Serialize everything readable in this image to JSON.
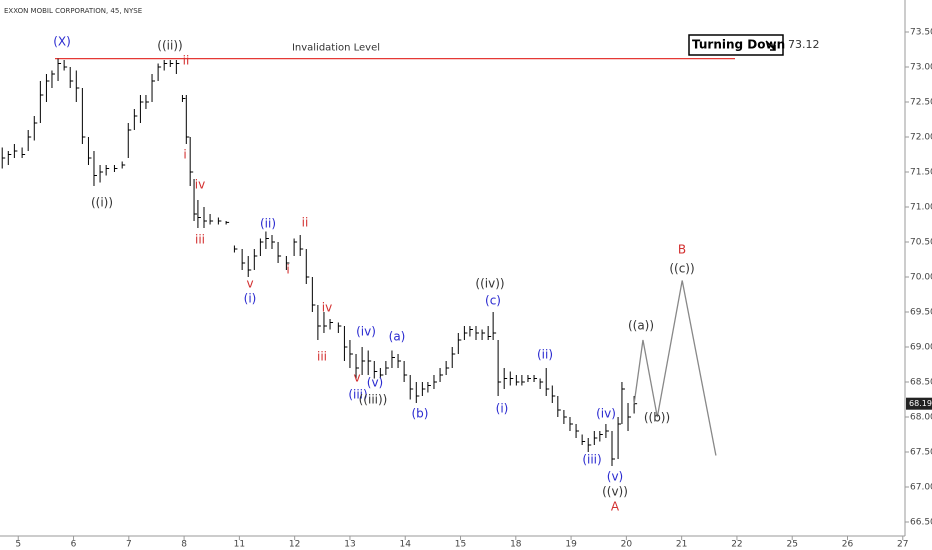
{
  "chart_data": {
    "type": "ohlc",
    "title": "EXXON MOBIL CORPORATION, 45, NYSE",
    "color": "#000000",
    "x": [
      -0.29,
      -0.18,
      -0.07,
      0.07,
      0.18,
      0.29,
      0.4,
      0.51,
      0.61,
      0.72,
      0.83,
      0.94,
      1.05,
      1.16,
      1.27,
      1.37,
      1.48,
      1.59,
      1.74,
      1.88,
      1.99,
      2.1,
      2.21,
      2.31,
      2.42,
      2.53,
      2.64,
      2.75,
      2.86,
      2.97,
      3.04,
      3.11,
      3.18,
      3.25,
      3.36,
      3.47,
      3.62,
      3.76,
      3.91,
      4.05,
      4.16,
      4.27,
      4.38,
      4.48,
      4.59,
      4.7,
      4.85,
      4.99,
      5.1,
      5.21,
      5.32,
      5.42,
      5.53,
      5.64,
      5.79,
      5.9,
      6.0,
      6.11,
      6.22,
      6.33,
      6.44,
      6.55,
      6.65,
      6.76,
      6.87,
      6.98,
      7.09,
      7.2,
      7.31,
      7.41,
      7.52,
      7.63,
      7.74,
      7.85,
      7.96,
      8.07,
      8.17,
      8.28,
      8.39,
      8.5,
      8.59,
      8.68,
      8.79,
      8.9,
      9.01,
      9.11,
      9.22,
      9.33,
      9.44,
      9.55,
      9.66,
      9.76,
      9.87,
      9.98,
      10.09,
      10.2,
      10.31,
      10.42,
      10.52,
      10.63,
      10.74,
      10.85,
      10.92,
      11.03,
      11.14
    ],
    "high": [
      71.85,
      71.8,
      71.9,
      71.85,
      72.1,
      72.3,
      72.8,
      72.9,
      72.95,
      73.12,
      73.1,
      73.0,
      72.95,
      72.7,
      72.0,
      71.8,
      71.6,
      71.6,
      71.6,
      71.65,
      72.2,
      72.4,
      72.6,
      72.6,
      72.9,
      73.05,
      73.1,
      73.1,
      73.1,
      72.6,
      72.6,
      72.0,
      71.4,
      71.1,
      71.0,
      70.9,
      70.85,
      70.8,
      70.45,
      70.4,
      70.3,
      70.4,
      70.55,
      70.65,
      70.6,
      70.5,
      70.3,
      70.55,
      70.6,
      70.4,
      70.0,
      69.6,
      69.5,
      69.4,
      69.35,
      69.3,
      69.1,
      68.9,
      69.0,
      68.95,
      68.8,
      68.7,
      68.8,
      68.95,
      68.9,
      68.8,
      68.6,
      68.5,
      68.5,
      68.5,
      68.6,
      68.7,
      68.8,
      69.0,
      69.2,
      69.3,
      69.3,
      69.3,
      69.25,
      69.3,
      69.5,
      69.1,
      68.7,
      68.65,
      68.6,
      68.6,
      68.6,
      68.6,
      68.55,
      68.7,
      68.45,
      68.3,
      68.1,
      68.0,
      67.9,
      67.75,
      67.7,
      67.8,
      67.8,
      67.9,
      67.8,
      68.0,
      68.5,
      68.2,
      68.3
    ],
    "low": [
      71.55,
      71.6,
      71.7,
      71.7,
      71.8,
      71.95,
      72.2,
      72.5,
      72.7,
      72.8,
      72.95,
      72.7,
      72.5,
      71.9,
      71.6,
      71.3,
      71.35,
      71.45,
      71.5,
      71.55,
      71.7,
      72.1,
      72.2,
      72.4,
      72.5,
      72.8,
      72.95,
      73.0,
      72.9,
      72.5,
      71.9,
      71.3,
      70.8,
      70.7,
      70.7,
      70.75,
      70.75,
      70.75,
      70.35,
      70.1,
      70.0,
      70.1,
      70.3,
      70.4,
      70.4,
      70.2,
      70.1,
      70.3,
      70.3,
      69.9,
      69.5,
      69.1,
      69.2,
      69.25,
      69.2,
      68.8,
      68.7,
      68.55,
      68.6,
      68.6,
      68.55,
      68.55,
      68.6,
      68.7,
      68.7,
      68.5,
      68.25,
      68.2,
      68.3,
      68.35,
      68.4,
      68.5,
      68.6,
      68.7,
      68.9,
      69.1,
      69.15,
      69.1,
      69.1,
      69.1,
      69.1,
      68.3,
      68.4,
      68.45,
      68.45,
      68.45,
      68.5,
      68.5,
      68.4,
      68.3,
      68.2,
      68.0,
      67.9,
      67.8,
      67.7,
      67.6,
      67.5,
      67.6,
      67.65,
      67.7,
      67.3,
      67.4,
      67.9,
      67.8,
      68.05
    ],
    "close": [
      71.7,
      71.75,
      71.8,
      71.75,
      72.0,
      72.2,
      72.6,
      72.8,
      72.9,
      73.05,
      73.0,
      72.8,
      72.7,
      72.0,
      71.7,
      71.45,
      71.5,
      71.55,
      71.55,
      71.6,
      72.1,
      72.3,
      72.5,
      72.5,
      72.8,
      73.0,
      73.05,
      73.05,
      73.05,
      72.55,
      72.0,
      71.5,
      70.9,
      70.85,
      70.8,
      70.8,
      70.8,
      70.78,
      70.4,
      70.2,
      70.1,
      70.3,
      70.5,
      70.55,
      70.5,
      70.3,
      70.2,
      70.5,
      70.4,
      70.0,
      69.6,
      69.3,
      69.3,
      69.35,
      69.3,
      69.0,
      68.9,
      68.7,
      68.8,
      68.8,
      68.65,
      68.6,
      68.7,
      68.85,
      68.8,
      68.6,
      68.4,
      68.3,
      68.4,
      68.45,
      68.5,
      68.6,
      68.7,
      68.9,
      69.1,
      69.2,
      69.25,
      69.2,
      69.2,
      69.15,
      69.2,
      68.5,
      68.55,
      68.55,
      68.5,
      68.5,
      68.55,
      68.55,
      68.5,
      68.4,
      68.3,
      68.1,
      68.0,
      67.9,
      67.8,
      67.65,
      67.6,
      67.7,
      67.75,
      67.8,
      67.4,
      67.9,
      68.4,
      68.0,
      68.19
    ],
    "projection": {
      "x": [
        11.14,
        11.3,
        11.56,
        12.01,
        12.62
      ],
      "values": [
        68.19,
        69.1,
        68.0,
        69.95,
        67.45
      ],
      "color": "#888888"
    },
    "invalidation": {
      "label": "Invalidation Level",
      "value": 73.12,
      "color": "#e53935"
    },
    "turning_down": "Turning Down",
    "last_price": 68.19,
    "xlim": [
      -0.33,
      16.04
    ],
    "xticks": [
      {
        "value": 0,
        "label": "5"
      },
      {
        "value": 1,
        "label": "6"
      },
      {
        "value": 2,
        "label": "7"
      },
      {
        "value": 3,
        "label": "8"
      },
      {
        "value": 4,
        "label": "11"
      },
      {
        "value": 5,
        "label": "12"
      },
      {
        "value": 6,
        "label": "13"
      },
      {
        "value": 7,
        "label": "14"
      },
      {
        "value": 8,
        "label": "15"
      },
      {
        "value": 9,
        "label": "18"
      },
      {
        "value": 10,
        "label": "19"
      },
      {
        "value": 11,
        "label": "20"
      },
      {
        "value": 12,
        "label": "21"
      },
      {
        "value": 13,
        "label": "22"
      },
      {
        "value": 14,
        "label": "25"
      },
      {
        "value": 15,
        "label": "26"
      },
      {
        "value": 16,
        "label": "27"
      }
    ],
    "ylim": [
      66.3,
      73.75
    ],
    "yticks": [
      {
        "value": 66.5,
        "label": "66.50"
      },
      {
        "value": 67,
        "label": "67.00"
      },
      {
        "value": 67.5,
        "label": "67.50"
      },
      {
        "value": 68,
        "label": "68.00"
      },
      {
        "value": 68.5,
        "label": "68.50"
      },
      {
        "value": 69,
        "label": "69.00"
      },
      {
        "value": 69.5,
        "label": "69.50"
      },
      {
        "value": 70,
        "label": "70.00"
      },
      {
        "value": 70.5,
        "label": "70.50"
      },
      {
        "value": 71,
        "label": "71.00"
      },
      {
        "value": 71.5,
        "label": "71.50"
      },
      {
        "value": 72,
        "label": "72.00"
      },
      {
        "value": 72.5,
        "label": "72.50"
      },
      {
        "value": 73,
        "label": "73.00"
      },
      {
        "value": 73.5,
        "label": "73.50"
      }
    ],
    "annotations": [
      {
        "text": "(X)",
        "color": "#2a2ad0"
      },
      {
        "text": "((ii))",
        "color": "#333333"
      },
      {
        "text": "((i))",
        "color": "#333333"
      },
      {
        "text": "ii",
        "color": "#d32f2f"
      },
      {
        "text": "i",
        "color": "#d32f2f"
      },
      {
        "text": "iv",
        "color": "#d32f2f"
      },
      {
        "text": "iii",
        "color": "#d32f2f"
      },
      {
        "text": "(ii)",
        "color": "#2a2ad0"
      },
      {
        "text": "v",
        "color": "#d32f2f"
      },
      {
        "text": "(i)",
        "color": "#2a2ad0"
      },
      {
        "text": "i",
        "color": "#d32f2f"
      },
      {
        "text": "ii",
        "color": "#d32f2f"
      },
      {
        "text": "iv",
        "color": "#d32f2f"
      },
      {
        "text": "iii",
        "color": "#d32f2f"
      },
      {
        "text": "(iv)",
        "color": "#2a2ad0"
      },
      {
        "text": "v",
        "color": "#d32f2f"
      },
      {
        "text": "(iii)",
        "color": "#2a2ad0"
      },
      {
        "text": "(v)",
        "color": "#2a2ad0"
      },
      {
        "text": "((iii))",
        "color": "#333333"
      },
      {
        "text": "(a)",
        "color": "#2a2ad0"
      },
      {
        "text": "(b)",
        "color": "#2a2ad0"
      },
      {
        "text": "((iv))",
        "color": "#333333"
      },
      {
        "text": "(c)",
        "color": "#2a2ad0"
      },
      {
        "text": "(i)",
        "color": "#2a2ad0"
      },
      {
        "text": "(ii)",
        "color": "#2a2ad0"
      },
      {
        "text": "(iii)",
        "color": "#2a2ad0"
      },
      {
        "text": "(iv)",
        "color": "#2a2ad0"
      },
      {
        "text": "(v)",
        "color": "#2a2ad0"
      },
      {
        "text": "((v))",
        "color": "#333333"
      },
      {
        "text": "A",
        "color": "#d32f2f"
      },
      {
        "text": "((a))",
        "color": "#333333"
      },
      {
        "text": "((b))",
        "color": "#333333"
      },
      {
        "text": "B",
        "color": "#d32f2f"
      },
      {
        "text": "((c))",
        "color": "#333333"
      }
    ]
  }
}
